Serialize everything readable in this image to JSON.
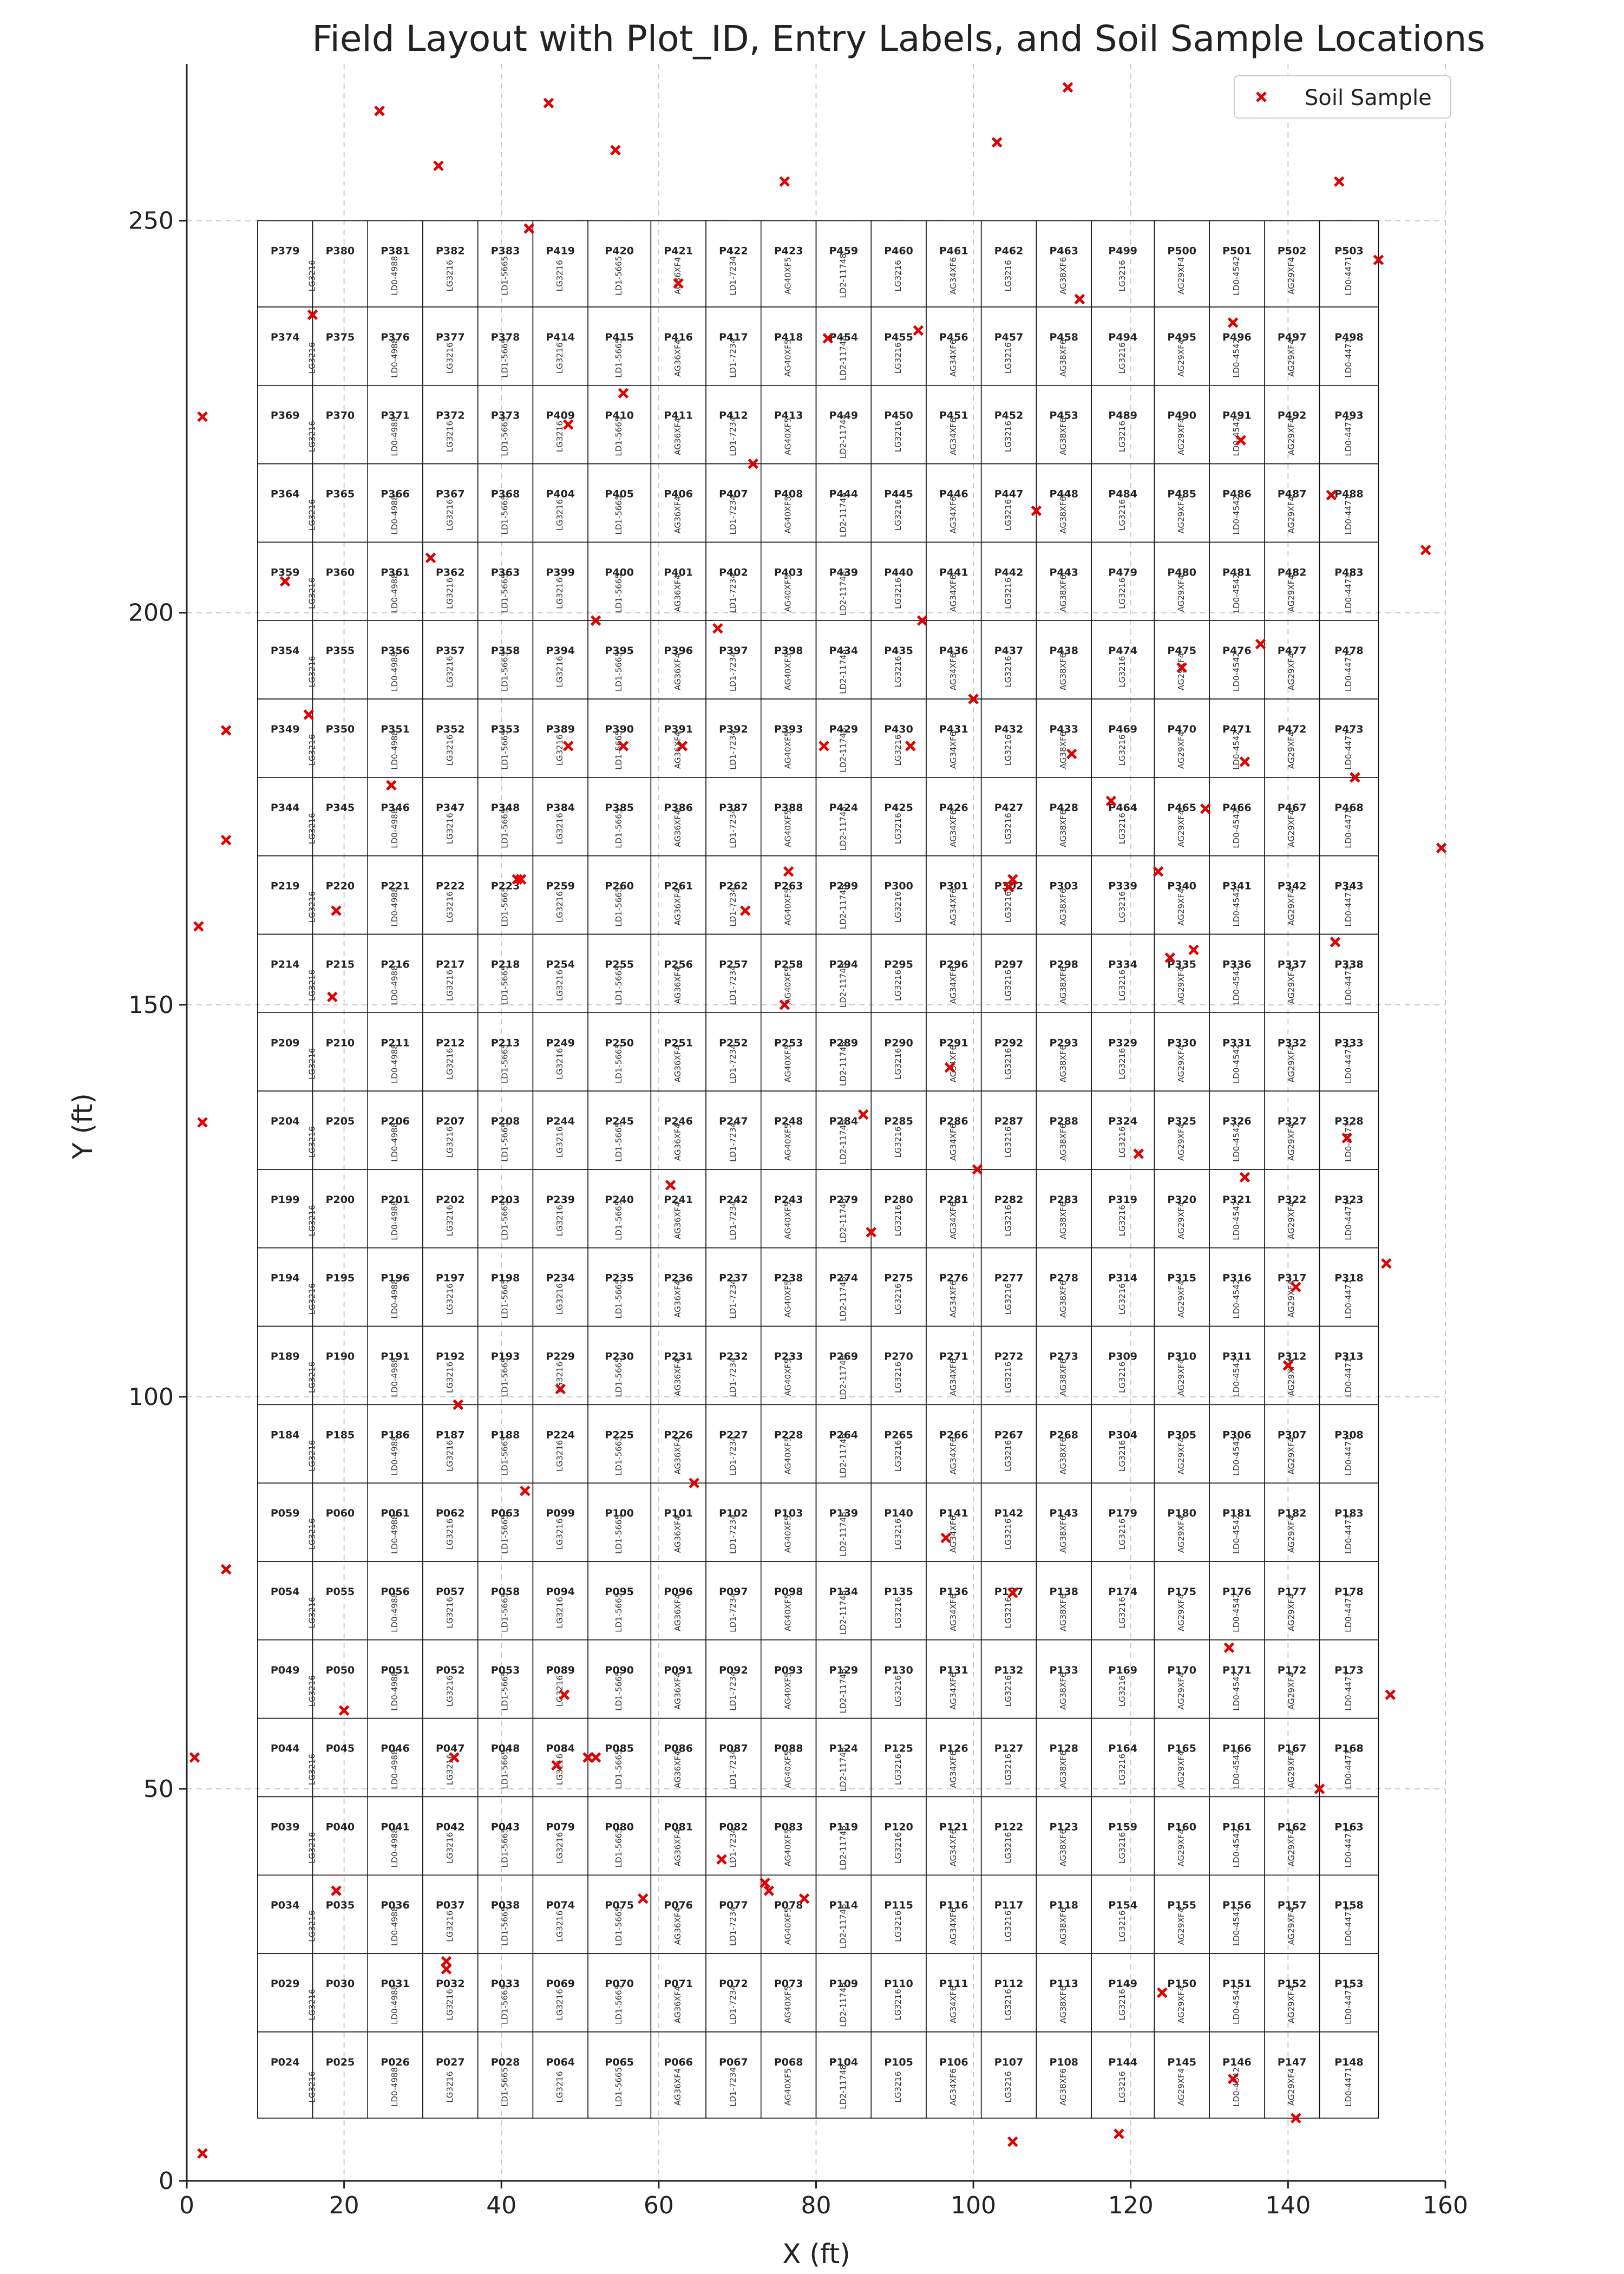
{
  "chart_data": {
    "type": "scatter",
    "title": "Field Layout with Plot_ID, Entry Labels, and Soil Sample Locations",
    "xlabel": "X (ft)",
    "ylabel": "Y (ft)",
    "xlim": [
      0,
      160
    ],
    "ylim": [
      0,
      270
    ],
    "xticks": [
      0,
      20,
      40,
      60,
      80,
      100,
      120,
      140,
      160
    ],
    "yticks": [
      0,
      50,
      100,
      150,
      200,
      250
    ],
    "grid": true,
    "legend": {
      "position": "top-right",
      "entries": [
        "Soil Sample"
      ]
    },
    "colors": {
      "samples": "#e00000",
      "grid": "#cccccc",
      "plot_border": "#111111"
    },
    "field": {
      "x_range": [
        9,
        151.5
      ],
      "y_range": [
        8,
        250
      ]
    },
    "ranges": [
      {
        "x0": 9,
        "x1": 23,
        "label": "LG3216"
      },
      {
        "x0": 23,
        "x1": 30,
        "label": "LD0-4988"
      },
      {
        "x0": 30,
        "x1": 37,
        "label": "LG3216"
      },
      {
        "x0": 37,
        "x1": 44,
        "label": "LD1-5665"
      },
      {
        "x0": 44,
        "x1": 51,
        "label": "LG3216"
      },
      {
        "x0": 51,
        "x1": 59,
        "label": "LD1-5665"
      },
      {
        "x0": 59,
        "x1": 66,
        "label": "AG36XF4"
      },
      {
        "x0": 66,
        "x1": 73,
        "label": "LD1-7234"
      },
      {
        "x0": 73,
        "x1": 80,
        "label": "AG40XF5"
      },
      {
        "x0": 80,
        "x1": 87,
        "label": "LD2-11748"
      },
      {
        "x0": 87,
        "x1": 94,
        "label": "LG3216"
      },
      {
        "x0": 94,
        "x1": 101,
        "label": "AG34XF6"
      },
      {
        "x0": 101,
        "x1": 108,
        "label": "LG3216"
      },
      {
        "x0": 108,
        "x1": 115,
        "label": "AG38XF6"
      },
      {
        "x0": 115,
        "x1": 123,
        "label": "LG3216"
      },
      {
        "x0": 123,
        "x1": 130,
        "label": "AG29XF4"
      },
      {
        "x0": 130,
        "x1": 137,
        "label": "LD0-4542"
      },
      {
        "x0": 137,
        "x1": 144,
        "label": "AG29XF4"
      },
      {
        "x0": 144,
        "x1": 151.5,
        "label": "LD0-4471"
      }
    ],
    "plot_columns": [
      {
        "x0": 9,
        "x1": 16
      },
      {
        "x0": 16,
        "x1": 23
      },
      {
        "x0": 23,
        "x1": 30
      },
      {
        "x0": 30,
        "x1": 37
      },
      {
        "x0": 37,
        "x1": 44
      },
      {
        "x0": 44,
        "x1": 51
      },
      {
        "x0": 51,
        "x1": 59
      },
      {
        "x0": 59,
        "x1": 66
      },
      {
        "x0": 66,
        "x1": 73
      },
      {
        "x0": 73,
        "x1": 80
      },
      {
        "x0": 80,
        "x1": 87
      },
      {
        "x0": 87,
        "x1": 94
      },
      {
        "x0": 94,
        "x1": 101
      },
      {
        "x0": 101,
        "x1": 108
      },
      {
        "x0": 108,
        "x1": 115
      },
      {
        "x0": 115,
        "x1": 123
      },
      {
        "x0": 123,
        "x1": 130
      },
      {
        "x0": 130,
        "x1": 137
      },
      {
        "x0": 137,
        "x1": 144
      },
      {
        "x0": 144,
        "x1": 151.5
      }
    ],
    "plot_rows": [
      {
        "y0": 239,
        "y1": 250,
        "ids": [
          "P379",
          "P380",
          "P381",
          "P382",
          "P383",
          "P419",
          "P420",
          "P421",
          "P422",
          "P423",
          "P459",
          "P460",
          "P461",
          "P462",
          "P463",
          "P499",
          "P500",
          "P501",
          "P502",
          "P503"
        ]
      },
      {
        "y0": 229,
        "y1": 239,
        "ids": [
          "P374",
          "P375",
          "P376",
          "P377",
          "P378",
          "P414",
          "P415",
          "P416",
          "P417",
          "P418",
          "P454",
          "P455",
          "P456",
          "P457",
          "P458",
          "P494",
          "P495",
          "P496",
          "P497",
          "P498"
        ]
      },
      {
        "y0": 219,
        "y1": 229,
        "ids": [
          "P369",
          "P370",
          "P371",
          "P372",
          "P373",
          "P409",
          "P410",
          "P411",
          "P412",
          "P413",
          "P449",
          "P450",
          "P451",
          "P452",
          "P453",
          "P489",
          "P490",
          "P491",
          "P492",
          "P493"
        ]
      },
      {
        "y0": 209,
        "y1": 219,
        "ids": [
          "P364",
          "P365",
          "P366",
          "P367",
          "P368",
          "P404",
          "P405",
          "P406",
          "P407",
          "P408",
          "P444",
          "P445",
          "P446",
          "P447",
          "P448",
          "P484",
          "P485",
          "P486",
          "P487",
          "P488"
        ]
      },
      {
        "y0": 199,
        "y1": 209,
        "ids": [
          "P359",
          "P360",
          "P361",
          "P362",
          "P363",
          "P399",
          "P400",
          "P401",
          "P402",
          "P403",
          "P439",
          "P440",
          "P441",
          "P442",
          "P443",
          "P479",
          "P480",
          "P481",
          "P482",
          "P483"
        ]
      },
      {
        "y0": 189,
        "y1": 199,
        "ids": [
          "P354",
          "P355",
          "P356",
          "P357",
          "P358",
          "P394",
          "P395",
          "P396",
          "P397",
          "P398",
          "P434",
          "P435",
          "P436",
          "P437",
          "P438",
          "P474",
          "P475",
          "P476",
          "P477",
          "P478"
        ]
      },
      {
        "y0": 179,
        "y1": 189,
        "ids": [
          "P349",
          "P350",
          "P351",
          "P352",
          "P353",
          "P389",
          "P390",
          "P391",
          "P392",
          "P393",
          "P429",
          "P430",
          "P431",
          "P432",
          "P433",
          "P469",
          "P470",
          "P471",
          "P472",
          "P473"
        ]
      },
      {
        "y0": 169,
        "y1": 179,
        "ids": [
          "P344",
          "P345",
          "P346",
          "P347",
          "P348",
          "P384",
          "P385",
          "P386",
          "P387",
          "P388",
          "P424",
          "P425",
          "P426",
          "P427",
          "P428",
          "P464",
          "P465",
          "P466",
          "P467",
          "P468"
        ]
      },
      {
        "y0": 159,
        "y1": 169,
        "ids": [
          "P219",
          "P220",
          "P221",
          "P222",
          "P223",
          "P259",
          "P260",
          "P261",
          "P262",
          "P263",
          "P299",
          "P300",
          "P301",
          "P302",
          "P303",
          "P339",
          "P340",
          "P341",
          "P342",
          "P343"
        ]
      },
      {
        "y0": 149,
        "y1": 159,
        "ids": [
          "P214",
          "P215",
          "P216",
          "P217",
          "P218",
          "P254",
          "P255",
          "P256",
          "P257",
          "P258",
          "P294",
          "P295",
          "P296",
          "P297",
          "P298",
          "P334",
          "P335",
          "P336",
          "P337",
          "P338"
        ]
      },
      {
        "y0": 139,
        "y1": 149,
        "ids": [
          "P209",
          "P210",
          "P211",
          "P212",
          "P213",
          "P249",
          "P250",
          "P251",
          "P252",
          "P253",
          "P289",
          "P290",
          "P291",
          "P292",
          "P293",
          "P329",
          "P330",
          "P331",
          "P332",
          "P333"
        ]
      },
      {
        "y0": 129,
        "y1": 139,
        "ids": [
          "P204",
          "P205",
          "P206",
          "P207",
          "P208",
          "P244",
          "P245",
          "P246",
          "P247",
          "P248",
          "P284",
          "P285",
          "P286",
          "P287",
          "P288",
          "P324",
          "P325",
          "P326",
          "P327",
          "P328"
        ]
      },
      {
        "y0": 119,
        "y1": 129,
        "ids": [
          "P199",
          "P200",
          "P201",
          "P202",
          "P203",
          "P239",
          "P240",
          "P241",
          "P242",
          "P243",
          "P279",
          "P280",
          "P281",
          "P282",
          "P283",
          "P319",
          "P320",
          "P321",
          "P322",
          "P323"
        ]
      },
      {
        "y0": 109,
        "y1": 119,
        "ids": [
          "P194",
          "P195",
          "P196",
          "P197",
          "P198",
          "P234",
          "P235",
          "P236",
          "P237",
          "P238",
          "P274",
          "P275",
          "P276",
          "P277",
          "P278",
          "P314",
          "P315",
          "P316",
          "P317",
          "P318"
        ]
      },
      {
        "y0": 99,
        "y1": 109,
        "ids": [
          "P189",
          "P190",
          "P191",
          "P192",
          "P193",
          "P229",
          "P230",
          "P231",
          "P232",
          "P233",
          "P269",
          "P270",
          "P271",
          "P272",
          "P273",
          "P309",
          "P310",
          "P311",
          "P312",
          "P313"
        ]
      },
      {
        "y0": 89,
        "y1": 99,
        "ids": [
          "P184",
          "P185",
          "P186",
          "P187",
          "P188",
          "P224",
          "P225",
          "P226",
          "P227",
          "P228",
          "P264",
          "P265",
          "P266",
          "P267",
          "P268",
          "P304",
          "P305",
          "P306",
          "P307",
          "P308"
        ]
      },
      {
        "y0": 79,
        "y1": 89,
        "ids": [
          "P059",
          "P060",
          "P061",
          "P062",
          "P063",
          "P099",
          "P100",
          "P101",
          "P102",
          "P103",
          "P139",
          "P140",
          "P141",
          "P142",
          "P143",
          "P179",
          "P180",
          "P181",
          "P182",
          "P183"
        ]
      },
      {
        "y0": 69,
        "y1": 79,
        "ids": [
          "P054",
          "P055",
          "P056",
          "P057",
          "P058",
          "P094",
          "P095",
          "P096",
          "P097",
          "P098",
          "P134",
          "P135",
          "P136",
          "P137",
          "P138",
          "P174",
          "P175",
          "P176",
          "P177",
          "P178"
        ]
      },
      {
        "y0": 59,
        "y1": 69,
        "ids": [
          "P049",
          "P050",
          "P051",
          "P052",
          "P053",
          "P089",
          "P090",
          "P091",
          "P092",
          "P093",
          "P129",
          "P130",
          "P131",
          "P132",
          "P133",
          "P169",
          "P170",
          "P171",
          "P172",
          "P173"
        ]
      },
      {
        "y0": 49,
        "y1": 59,
        "ids": [
          "P044",
          "P045",
          "P046",
          "P047",
          "P048",
          "P084",
          "P085",
          "P086",
          "P087",
          "P088",
          "P124",
          "P125",
          "P126",
          "P127",
          "P128",
          "P164",
          "P165",
          "P166",
          "P167",
          "P168"
        ]
      },
      {
        "y0": 39,
        "y1": 49,
        "ids": [
          "P039",
          "P040",
          "P041",
          "P042",
          "P043",
          "P079",
          "P080",
          "P081",
          "P082",
          "P083",
          "P119",
          "P120",
          "P121",
          "P122",
          "P123",
          "P159",
          "P160",
          "P161",
          "P162",
          "P163"
        ]
      },
      {
        "y0": 29,
        "y1": 39,
        "ids": [
          "P034",
          "P035",
          "P036",
          "P037",
          "P038",
          "P074",
          "P075",
          "P076",
          "P077",
          "P078",
          "P114",
          "P115",
          "P116",
          "P117",
          "P118",
          "P154",
          "P155",
          "P156",
          "P157",
          "P158"
        ]
      },
      {
        "y0": 19,
        "y1": 29,
        "ids": [
          "P029",
          "P030",
          "P031",
          "P032",
          "P033",
          "P069",
          "P070",
          "P071",
          "P072",
          "P073",
          "P109",
          "P110",
          "P111",
          "P112",
          "P113",
          "P149",
          "P150",
          "P151",
          "P152",
          "P153"
        ]
      },
      {
        "y0": 8,
        "y1": 19,
        "ids": [
          "P024",
          "P025",
          "P026",
          "P027",
          "P028",
          "P064",
          "P065",
          "P066",
          "P067",
          "P068",
          "P104",
          "P105",
          "P106",
          "P107",
          "P108",
          "P144",
          "P145",
          "P146",
          "P147",
          "P148"
        ]
      }
    ],
    "samples": {
      "name": "Soil Sample",
      "x": [
        16,
        24.5,
        32,
        43.5,
        46,
        54.5,
        62.5,
        76,
        72,
        103,
        112,
        113.5,
        133,
        146.5,
        151.5,
        157.5,
        159.5,
        2,
        1.5,
        2,
        1,
        2,
        5,
        5,
        5,
        12.5,
        15.5,
        19,
        18.5,
        19,
        20,
        31,
        26,
        34,
        34.5,
        33,
        33,
        42.5,
        43,
        48,
        47.5,
        55.5,
        52,
        48.5,
        67.5,
        68,
        81.5,
        93,
        93.5,
        100,
        108,
        87,
        71,
        81,
        73.5,
        92,
        78.5,
        61.5,
        63,
        55.5,
        48.5,
        86,
        97,
        104.5,
        100.5,
        96.5,
        105,
        112.5,
        105,
        74,
        58,
        52,
        51,
        47,
        42,
        34.5,
        64.5,
        76.5,
        76,
        105,
        117.5,
        126.5,
        123.5,
        125,
        128,
        129.5,
        134.5,
        134,
        136.5,
        141,
        146,
        145.5,
        147.5,
        140,
        152.5,
        153,
        148.5,
        144,
        132.5,
        134.5,
        124,
        121,
        118.5,
        141,
        133
      ],
      "y": [
        238,
        264,
        257,
        249,
        265,
        259,
        242,
        255,
        219,
        260,
        267,
        240,
        237,
        255,
        245,
        208,
        170,
        225,
        160,
        135,
        54,
        3.5,
        78,
        171,
        185,
        204,
        187,
        162,
        151,
        37,
        60,
        207,
        178,
        54,
        99,
        27,
        28,
        166,
        88,
        62,
        101,
        228,
        199,
        224,
        198,
        41,
        235,
        236,
        199,
        189,
        213,
        121,
        162,
        183,
        38,
        183,
        36,
        127,
        183,
        183,
        183,
        136,
        142,
        165,
        129,
        82,
        5,
        182,
        75,
        37,
        36,
        54,
        54,
        53,
        166,
        99,
        89,
        167,
        150,
        166,
        176,
        193,
        167,
        156,
        157,
        175,
        181,
        222,
        196,
        114,
        158,
        215,
        133,
        104,
        117,
        62,
        179,
        50,
        68,
        128,
        24,
        131,
        6,
        8,
        13
      ]
    }
  }
}
